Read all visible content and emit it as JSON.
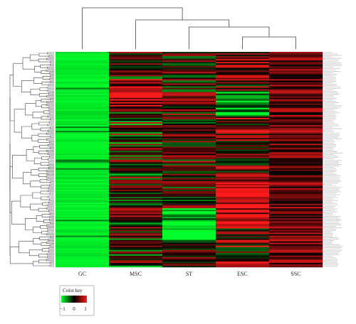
{
  "chart_data": {
    "type": "heatmap",
    "columns": [
      "GC",
      "MSC",
      "ST",
      "ESC",
      "SSC"
    ],
    "column_dendrogram_order": [
      "GC",
      "MSC",
      "ST",
      "ESC",
      "SSC"
    ],
    "row_count": 150,
    "value_range": [
      -1,
      1
    ],
    "colors": {
      "low": "#00ff2a",
      "mid": "#000000",
      "high": "#ff1a1a"
    },
    "color_key": {
      "title": "Color key",
      "ticks": [
        "−1",
        "0",
        "1"
      ]
    },
    "row_labels_present": true
  }
}
